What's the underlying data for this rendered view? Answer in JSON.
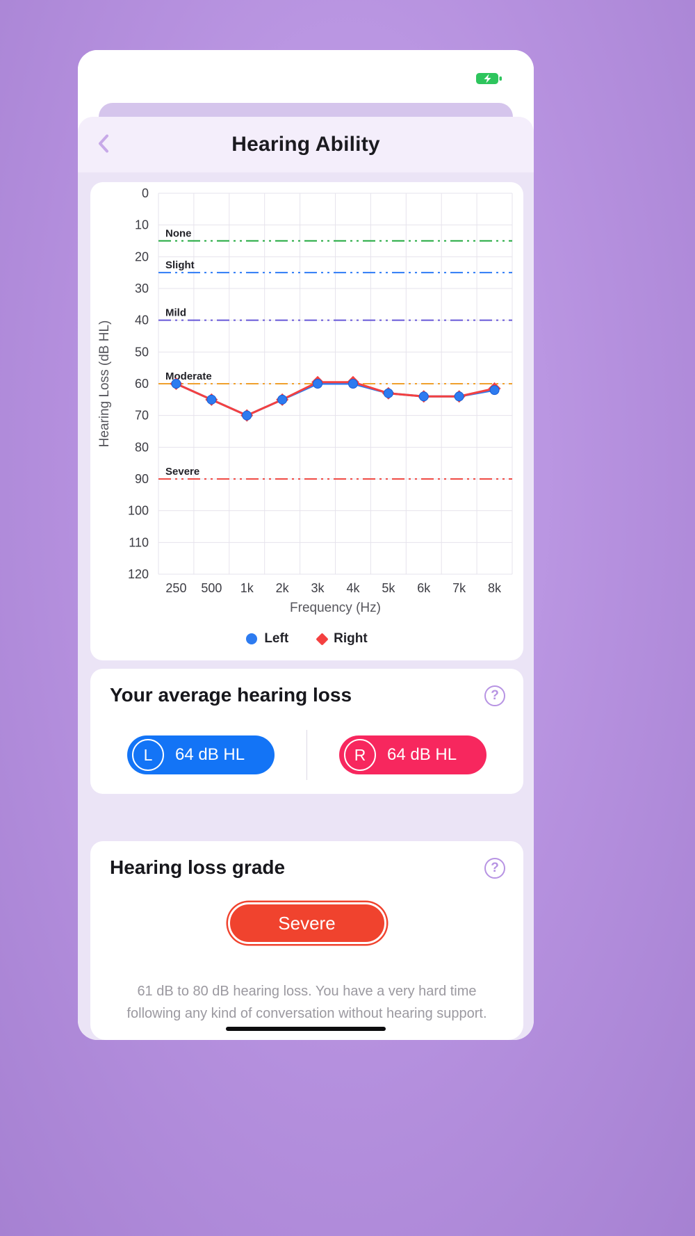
{
  "status_bar": {
    "battery_icon": "battery-charging-icon"
  },
  "header": {
    "title": "Hearing Ability"
  },
  "chart_data": {
    "type": "line",
    "x": [
      "250",
      "500",
      "1k",
      "2k",
      "3k",
      "4k",
      "5k",
      "6k",
      "7k",
      "8k"
    ],
    "xlabel": "Frequency (Hz)",
    "ylabel": "Hearing Loss (dB HL)",
    "ylim": [
      0,
      120
    ],
    "ytick_step": 10,
    "y_axis_inverted_note": "0 dB at top, 120 dB at bottom (audiogram style)",
    "grid": true,
    "series": [
      {
        "name": "Left",
        "marker": "circle",
        "color": "#2d7bf0",
        "values": [
          60,
          65,
          70,
          65,
          60,
          60,
          63,
          64,
          64,
          62
        ]
      },
      {
        "name": "Right",
        "marker": "diamond",
        "color": "#f44040",
        "values": [
          60,
          65,
          70,
          65,
          59.5,
          59.5,
          63,
          64,
          64,
          61.5
        ]
      }
    ],
    "reference_lines": [
      {
        "label": "None",
        "value": 15,
        "color": "#1fa83c"
      },
      {
        "label": "Slight",
        "value": 25,
        "color": "#2e7bf6"
      },
      {
        "label": "Mild",
        "value": 40,
        "color": "#6657d8"
      },
      {
        "label": "Moderate",
        "value": 60,
        "color": "#f0a02c"
      },
      {
        "label": "Severe",
        "value": 90,
        "color": "#ef4b44"
      }
    ],
    "legend_position": "bottom"
  },
  "average_section": {
    "title": "Your average hearing loss",
    "help_label": "?",
    "left": {
      "badge": "L",
      "value": "64 dB HL",
      "color": "#1374f6"
    },
    "right": {
      "badge": "R",
      "value": "64 dB HL",
      "color": "#f7275e"
    }
  },
  "grade_section": {
    "title": "Hearing loss grade",
    "help_label": "?",
    "grade": "Severe",
    "grade_color": "#f0432e",
    "description": "61 dB to 80 dB hearing loss. You have a very hard time following any kind of conversation without hearing support."
  }
}
